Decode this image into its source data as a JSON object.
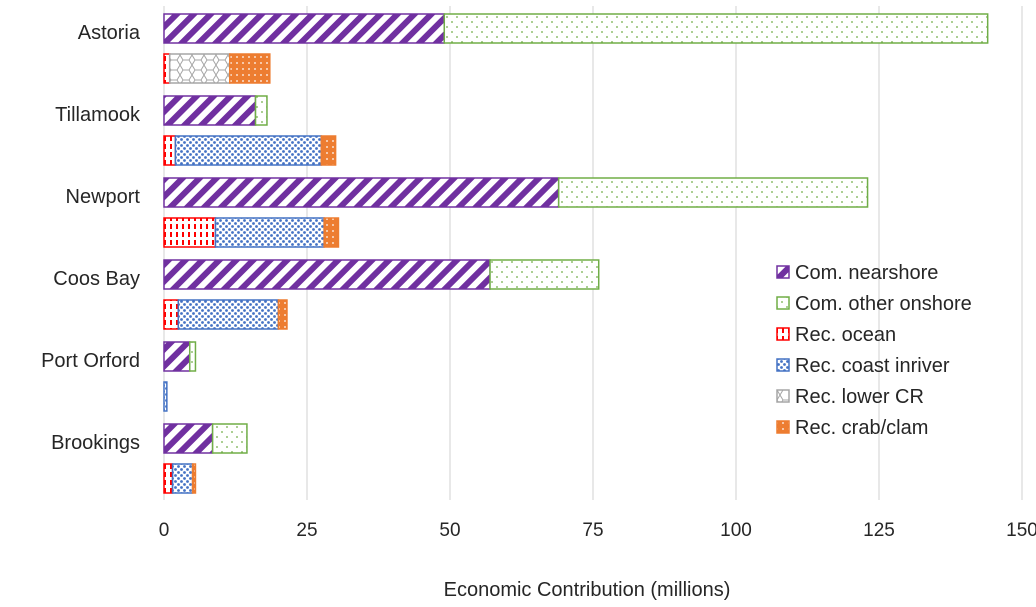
{
  "chart_data": {
    "type": "bar",
    "orientation": "horizontal",
    "stacked": true,
    "xlabel": "Economic Contribution  (millions)",
    "ylabel": "",
    "xlim": [
      0,
      150
    ],
    "xticks": [
      0,
      25,
      50,
      75,
      100,
      125,
      150
    ],
    "grid": true,
    "legend_position": "right",
    "categories": [
      "Astoria",
      "Tillamook",
      "Newport",
      "Coos Bay",
      "Port Orford",
      "Brookings"
    ],
    "groups": [
      {
        "group": "commercial",
        "series": [
          {
            "name": "Com. nearshore",
            "key": "com_near",
            "values": [
              49,
              16,
              69,
              57,
              4.5,
              8.5
            ]
          },
          {
            "name": "Com. other onshore",
            "key": "com_other",
            "values": [
              95,
              2,
              54,
              19,
              1,
              6
            ]
          }
        ]
      },
      {
        "group": "recreational",
        "series": [
          {
            "name": "Rec. ocean",
            "key": "rec_ocean",
            "values": [
              1,
              2,
              9,
              2.5,
              0,
              1.5
            ]
          },
          {
            "name": "Rec. coast inriver",
            "key": "rec_coast",
            "values": [
              0,
              25.5,
              19,
              17.5,
              0.5,
              3.5
            ]
          },
          {
            "name": "Rec. lower CR",
            "key": "rec_lower",
            "values": [
              10.5,
              0,
              0,
              0,
              0,
              0
            ]
          },
          {
            "name": "Rec. crab/clam",
            "key": "rec_crab",
            "values": [
              7,
              2.5,
              2.5,
              1.5,
              0,
              0.5
            ]
          }
        ]
      }
    ],
    "legend": [
      {
        "name": "Com. nearshore",
        "key": "com_near"
      },
      {
        "name": "Com. other onshore",
        "key": "com_other"
      },
      {
        "name": "Rec. ocean",
        "key": "rec_ocean"
      },
      {
        "name": "Rec. coast inriver",
        "key": "rec_coast"
      },
      {
        "name": "Rec. lower CR",
        "key": "rec_lower"
      },
      {
        "name": "Rec. crab/clam",
        "key": "rec_crab"
      }
    ],
    "colors": {
      "com_near": "#7030a0",
      "com_other": "#70ad47",
      "rec_ocean": "#ff0000",
      "rec_coast": "#4472c4",
      "rec_lower": "#a5a5a5",
      "rec_crab": "#ed7d31",
      "grid": "#d9d9d9"
    }
  }
}
